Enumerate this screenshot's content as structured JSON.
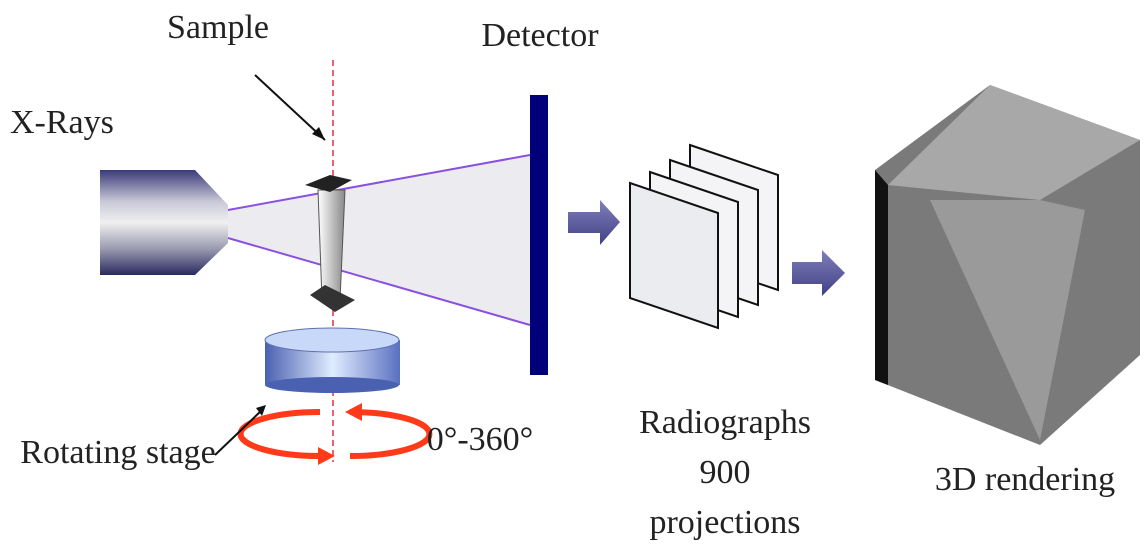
{
  "labels": {
    "sample": "Sample",
    "detector": "Detector",
    "xrays": "X-Rays",
    "rotating_stage": "Rotating stage",
    "angle": "0°-360°",
    "radiographs": [
      "Radiographs",
      "900",
      "projections"
    ],
    "rendering": "3D rendering"
  }
}
